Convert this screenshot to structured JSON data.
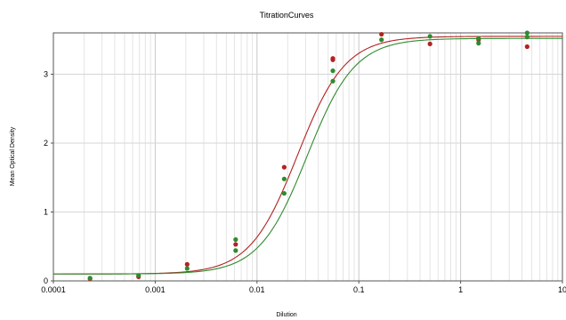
{
  "chart_data": {
    "type": "scatter",
    "title": "TitrationCurves",
    "xlabel": "Dilution",
    "ylabel": "Mean Optical Density",
    "x_scale": "log",
    "xlim": [
      0.0001,
      10
    ],
    "ylim": [
      0,
      3.6
    ],
    "grid": true,
    "x_ticks": [
      {
        "value": 0.0001,
        "label": "0.0001"
      },
      {
        "value": 0.001,
        "label": "0.001"
      },
      {
        "value": 0.01,
        "label": "0.01"
      },
      {
        "value": 0.1,
        "label": "0.1"
      },
      {
        "value": 1,
        "label": "1"
      },
      {
        "value": 10,
        "label": "10"
      }
    ],
    "y_ticks": [
      {
        "value": 0,
        "label": "0"
      },
      {
        "value": 1,
        "label": "1"
      },
      {
        "value": 2,
        "label": "2"
      },
      {
        "value": 3,
        "label": "3"
      }
    ],
    "series": [
      {
        "color": "#b22222",
        "points": [
          {
            "x": 0.000229,
            "y": 0.03
          },
          {
            "x": 0.000686,
            "y": 0.06
          },
          {
            "x": 0.00206,
            "y": 0.24
          },
          {
            "x": 0.00617,
            "y": 0.53
          },
          {
            "x": 0.0185,
            "y": 1.65
          },
          {
            "x": 0.0556,
            "y": 3.21
          },
          {
            "x": 0.0556,
            "y": 3.23
          },
          {
            "x": 0.167,
            "y": 3.58
          },
          {
            "x": 0.5,
            "y": 3.44
          },
          {
            "x": 1.5,
            "y": 3.5
          },
          {
            "x": 4.5,
            "y": 3.4
          }
        ],
        "curve": {
          "bottom": 0.1,
          "top": 3.55,
          "ec50": 0.025,
          "hill": 1.85
        }
      },
      {
        "color": "#2e8b2e",
        "points": [
          {
            "x": 0.000229,
            "y": 0.04
          },
          {
            "x": 0.000686,
            "y": 0.08
          },
          {
            "x": 0.00206,
            "y": 0.18
          },
          {
            "x": 0.00617,
            "y": 0.44
          },
          {
            "x": 0.00617,
            "y": 0.6
          },
          {
            "x": 0.0185,
            "y": 1.27
          },
          {
            "x": 0.0185,
            "y": 1.48
          },
          {
            "x": 0.0556,
            "y": 2.9
          },
          {
            "x": 0.0556,
            "y": 3.05
          },
          {
            "x": 0.167,
            "y": 3.5
          },
          {
            "x": 0.5,
            "y": 3.55
          },
          {
            "x": 1.5,
            "y": 3.45
          },
          {
            "x": 1.5,
            "y": 3.52
          },
          {
            "x": 4.5,
            "y": 3.54
          },
          {
            "x": 4.5,
            "y": 3.6
          }
        ],
        "curve": {
          "bottom": 0.1,
          "top": 3.52,
          "ec50": 0.031,
          "hill": 1.85
        }
      }
    ]
  }
}
